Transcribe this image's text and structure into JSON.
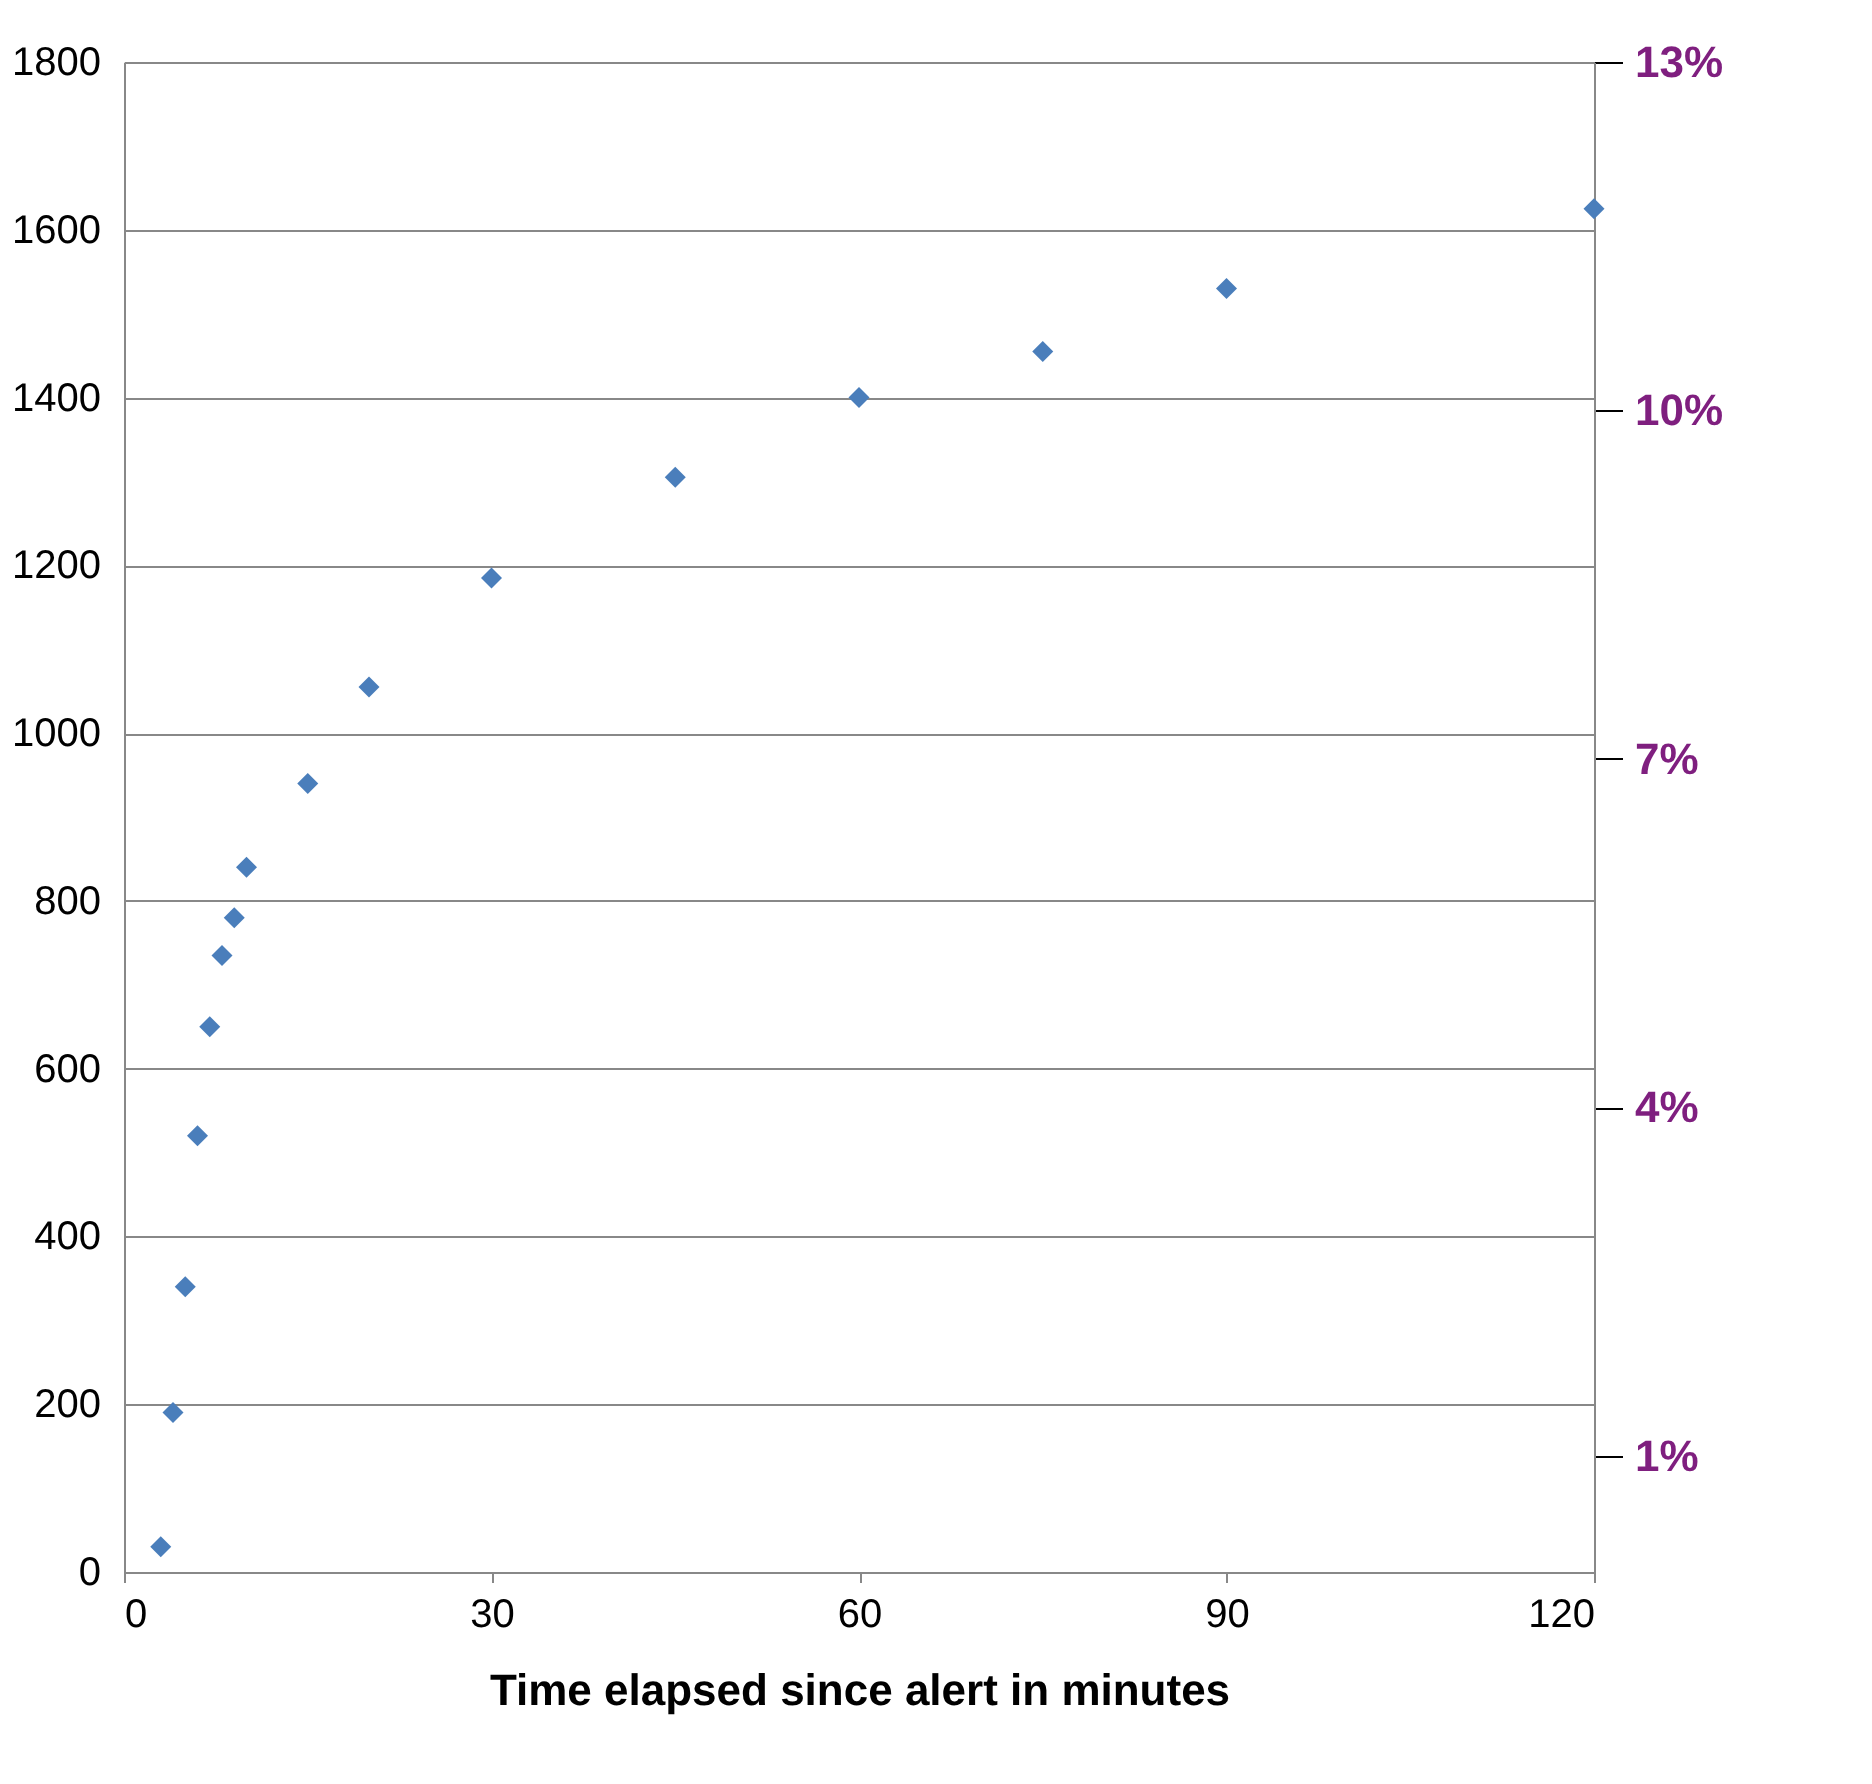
{
  "chart_data": {
    "type": "scatter",
    "xlabel": "Time elapsed since alert in minutes",
    "marker": "diamond",
    "grid": "y",
    "series": [
      {
        "color": "#4a7ebb",
        "x": [
          3,
          4,
          5,
          6,
          7,
          8,
          9,
          10,
          15,
          20,
          30,
          45,
          60,
          75,
          90,
          120
        ],
        "values": [
          30,
          190,
          340,
          520,
          650,
          735,
          780,
          840,
          940,
          1055,
          1185,
          1305,
          1400,
          1455,
          1530,
          1625
        ]
      }
    ],
    "xlim": [
      0,
      120
    ],
    "xticks": [
      0,
      30,
      60,
      90,
      120
    ],
    "ylim": [
      0,
      1800
    ],
    "yticks": [
      0,
      200,
      400,
      600,
      800,
      1000,
      1200,
      1400,
      1600,
      1800
    ],
    "y2lim": [
      0,
      13
    ],
    "y2ticks": [
      {
        "value": 1,
        "label": "1%"
      },
      {
        "value": 4,
        "label": "4%"
      },
      {
        "value": 7,
        "label": "7%"
      },
      {
        "value": 10,
        "label": "10%"
      },
      {
        "value": 13,
        "label": "13%"
      }
    ]
  }
}
